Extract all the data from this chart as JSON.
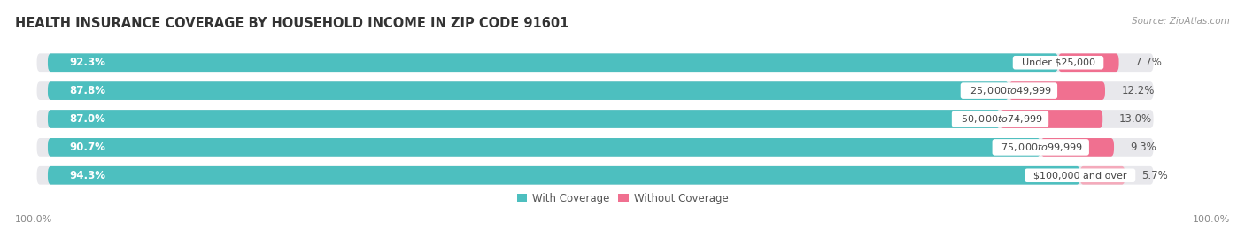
{
  "title": "HEALTH INSURANCE COVERAGE BY HOUSEHOLD INCOME IN ZIP CODE 91601",
  "source": "Source: ZipAtlas.com",
  "categories": [
    "Under $25,000",
    "$25,000 to $49,999",
    "$50,000 to $74,999",
    "$75,000 to $99,999",
    "$100,000 and over"
  ],
  "with_coverage": [
    92.3,
    87.8,
    87.0,
    90.7,
    94.3
  ],
  "without_coverage": [
    7.7,
    12.2,
    13.0,
    9.3,
    5.7
  ],
  "color_with": "#4DBFBF",
  "color_without": "#F07090",
  "color_without_last": "#F4AABB",
  "bar_bg_color": "#E8E8EC",
  "bar_height": 0.65,
  "figsize": [
    14.06,
    2.69
  ],
  "dpi": 100,
  "title_fontsize": 10.5,
  "label_fontsize": 8.5,
  "tick_fontsize": 8,
  "legend_fontsize": 8.5,
  "source_fontsize": 7.5,
  "background_color": "#FFFFFF",
  "center_label_color": "#444444",
  "left_label_color": "#FFFFFF",
  "right_label_color": "#555555",
  "x_axis_label": "100.0%"
}
